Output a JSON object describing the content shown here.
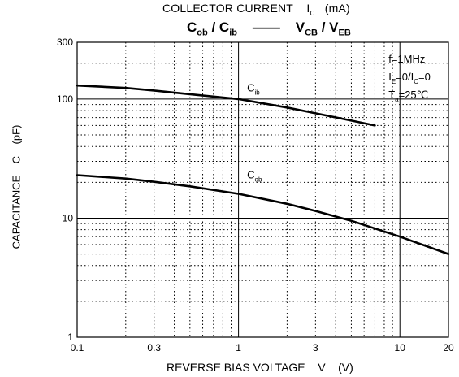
{
  "chart_data": {
    "type": "line",
    "top_axis_label": "COLLECTOR CURRENT    I  (mA)",
    "subtitle": "Cob / Cib — VCB / VEB",
    "xlabel": "REVERSE BIAS VOLTAGE    V    (V)",
    "ylabel": "CAPACITANCE    C    (pF)",
    "x_scale": "log",
    "y_scale": "log",
    "xlim": [
      0.1,
      20
    ],
    "ylim": [
      1,
      300
    ],
    "x_ticks": [
      0.1,
      0.3,
      1,
      3,
      10,
      20
    ],
    "x_tick_labels": [
      "0.1",
      "0.3",
      "1",
      "3",
      "10",
      "20"
    ],
    "y_ticks": [
      1,
      10,
      100,
      300
    ],
    "y_tick_labels": [
      "1",
      "10",
      "100",
      "300"
    ],
    "grid": true,
    "series": [
      {
        "name": "Cib",
        "x": [
          0.1,
          0.2,
          0.3,
          0.5,
          1,
          2,
          3,
          5,
          7
        ],
        "y": [
          130,
          124,
          118,
          110,
          100,
          85,
          76,
          66,
          60
        ]
      },
      {
        "name": "Cob",
        "x": [
          0.1,
          0.2,
          0.3,
          0.5,
          1,
          2,
          3,
          5,
          10,
          20
        ],
        "y": [
          23,
          21.5,
          20.2,
          18.5,
          16,
          13.2,
          11.5,
          9.5,
          7,
          5
        ]
      }
    ],
    "annotations": {
      "line1": "f=1MHz",
      "line2": "IE=0/IC=0",
      "line3": "Ta=25℃"
    },
    "curve_labels": {
      "cib": "Cib",
      "cob": "Cob"
    }
  }
}
